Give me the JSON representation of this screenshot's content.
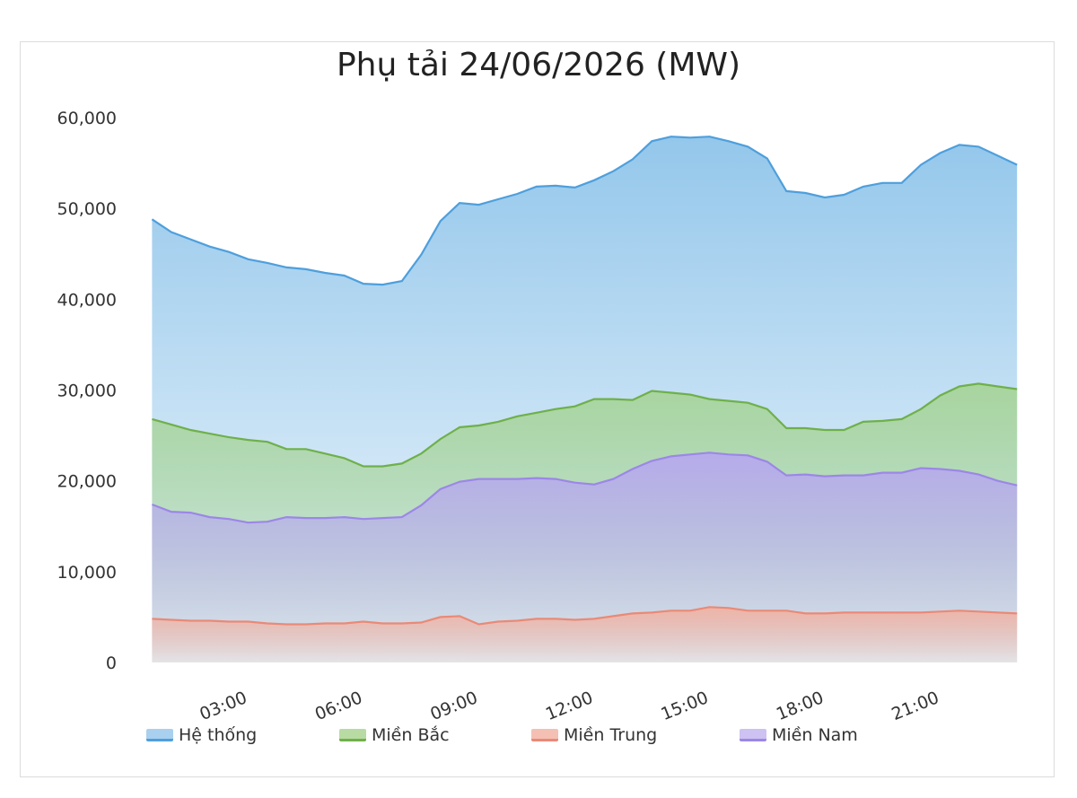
{
  "chart_data": {
    "type": "area",
    "title": "Phụ tải 24/06/2026 (MW)",
    "xlabel": "",
    "ylabel": "",
    "ylim": [
      0,
      60000
    ],
    "yticks": [
      "0",
      "10,000",
      "20,000",
      "30,000",
      "40,000",
      "50,000",
      "60,000"
    ],
    "xticks": [
      "03:00",
      "06:00",
      "09:00",
      "12:00",
      "15:00",
      "18:00",
      "21:00"
    ],
    "x_hours": [
      0.5,
      1.0,
      1.5,
      2.0,
      2.5,
      3.0,
      3.5,
      4.0,
      4.5,
      5.0,
      5.5,
      6.0,
      6.5,
      7.0,
      7.5,
      8.0,
      8.5,
      9.0,
      9.5,
      10.0,
      10.5,
      11.0,
      11.5,
      12.0,
      12.5,
      13.0,
      13.5,
      14.0,
      14.5,
      15.0,
      15.5,
      16.0,
      16.5,
      17.0,
      17.5,
      18.0,
      18.5,
      19.0,
      19.5,
      20.0,
      20.5,
      21.0,
      21.5,
      22.0,
      22.5,
      23.0
    ],
    "legend_position": "bottom",
    "series": [
      {
        "name": "Hệ thống",
        "color": "#4e9fdc",
        "values": [
          48800,
          47400,
          46600,
          45800,
          45200,
          44400,
          44000,
          43500,
          43300,
          42900,
          42600,
          41700,
          41600,
          42000,
          44900,
          48600,
          50600,
          50400,
          51000,
          51600,
          52400,
          52500,
          52300,
          53100,
          54100,
          55400,
          57400,
          57900,
          57800,
          57900,
          57400,
          56800,
          55500,
          51900,
          51700,
          51200,
          51500,
          52400,
          52800,
          52800,
          54800,
          56100,
          57000,
          56800,
          55800,
          54800
        ]
      },
      {
        "name": "Miền Bắc",
        "color": "#6fb04a",
        "values": [
          26800,
          26200,
          25600,
          25200,
          24800,
          24500,
          24300,
          23500,
          23500,
          23000,
          22500,
          21600,
          21600,
          21900,
          23000,
          24600,
          25900,
          26100,
          26500,
          27100,
          27500,
          27900,
          28200,
          29000,
          29000,
          28900,
          29900,
          29700,
          29500,
          29000,
          28800,
          28600,
          27900,
          25800,
          25800,
          25600,
          25600,
          26500,
          26600,
          26800,
          27900,
          29400,
          30400,
          30700,
          30400,
          30100
        ]
      },
      {
        "name": "Miền Trung",
        "color": "#e98a77",
        "values": [
          4800,
          4700,
          4600,
          4600,
          4500,
          4500,
          4300,
          4200,
          4200,
          4300,
          4300,
          4500,
          4300,
          4300,
          4400,
          5000,
          5100,
          4200,
          4500,
          4600,
          4800,
          4800,
          4700,
          4800,
          5100,
          5400,
          5500,
          5700,
          5700,
          6100,
          6000,
          5700,
          5700,
          5700,
          5400,
          5400,
          5500,
          5500,
          5500,
          5500,
          5500,
          5600,
          5700,
          5600,
          5500,
          5400
        ]
      },
      {
        "name": "Miền Nam",
        "color": "#9c87e6",
        "values": [
          17400,
          16600,
          16500,
          16000,
          15800,
          15400,
          15500,
          16000,
          15900,
          15900,
          16000,
          15800,
          15900,
          16000,
          17300,
          19100,
          19900,
          20200,
          20200,
          20200,
          20300,
          20200,
          19800,
          19600,
          20200,
          21300,
          22200,
          22700,
          22900,
          23100,
          22900,
          22800,
          22100,
          20600,
          20700,
          20500,
          20600,
          20600,
          20900,
          20900,
          21400,
          21300,
          21100,
          20700,
          20000,
          19500
        ]
      }
    ]
  }
}
